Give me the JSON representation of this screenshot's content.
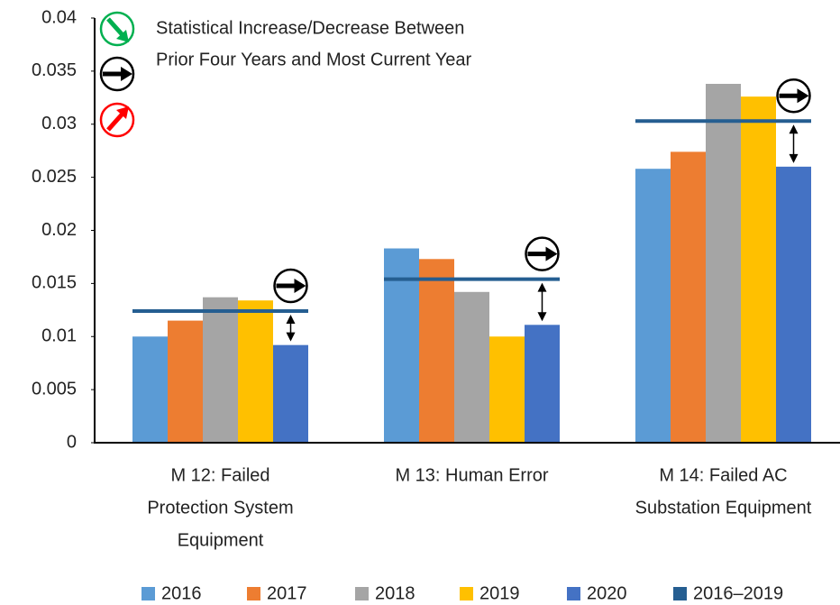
{
  "chart_data": {
    "type": "bar",
    "annotations": [
      "Statistical Increase/Decrease Between",
      "Prior Four Years and Most Current Year"
    ],
    "categories": [
      [
        "M 12:  Failed",
        "Protection System",
        "Equipment"
      ],
      [
        "M 13: Human Error"
      ],
      [
        "M 14: Failed AC",
        "Substation Equipment"
      ]
    ],
    "series": [
      {
        "name": "2016",
        "color": "#5b9bd5",
        "values": [
          0.01,
          0.0183,
          0.0258
        ]
      },
      {
        "name": "2017",
        "color": "#ed7d31",
        "values": [
          0.0115,
          0.0173,
          0.0274
        ]
      },
      {
        "name": "2018",
        "color": "#a5a5a5",
        "values": [
          0.0137,
          0.0142,
          0.0338
        ]
      },
      {
        "name": "2019",
        "color": "#ffc000",
        "values": [
          0.0134,
          0.01,
          0.0326
        ]
      },
      {
        "name": "2020",
        "color": "#4472c4",
        "values": [
          0.0092,
          0.0111,
          0.026
        ]
      },
      {
        "name": "2016–2019",
        "color": "#255e91",
        "kind": "average",
        "values": [
          0.0124,
          0.0154,
          0.0303
        ]
      }
    ],
    "ylim": [
      0,
      0.04
    ],
    "yticks": [
      0,
      0.005,
      0.01,
      0.015,
      0.02,
      0.025,
      0.03,
      0.035,
      0.04
    ],
    "grid": false
  }
}
